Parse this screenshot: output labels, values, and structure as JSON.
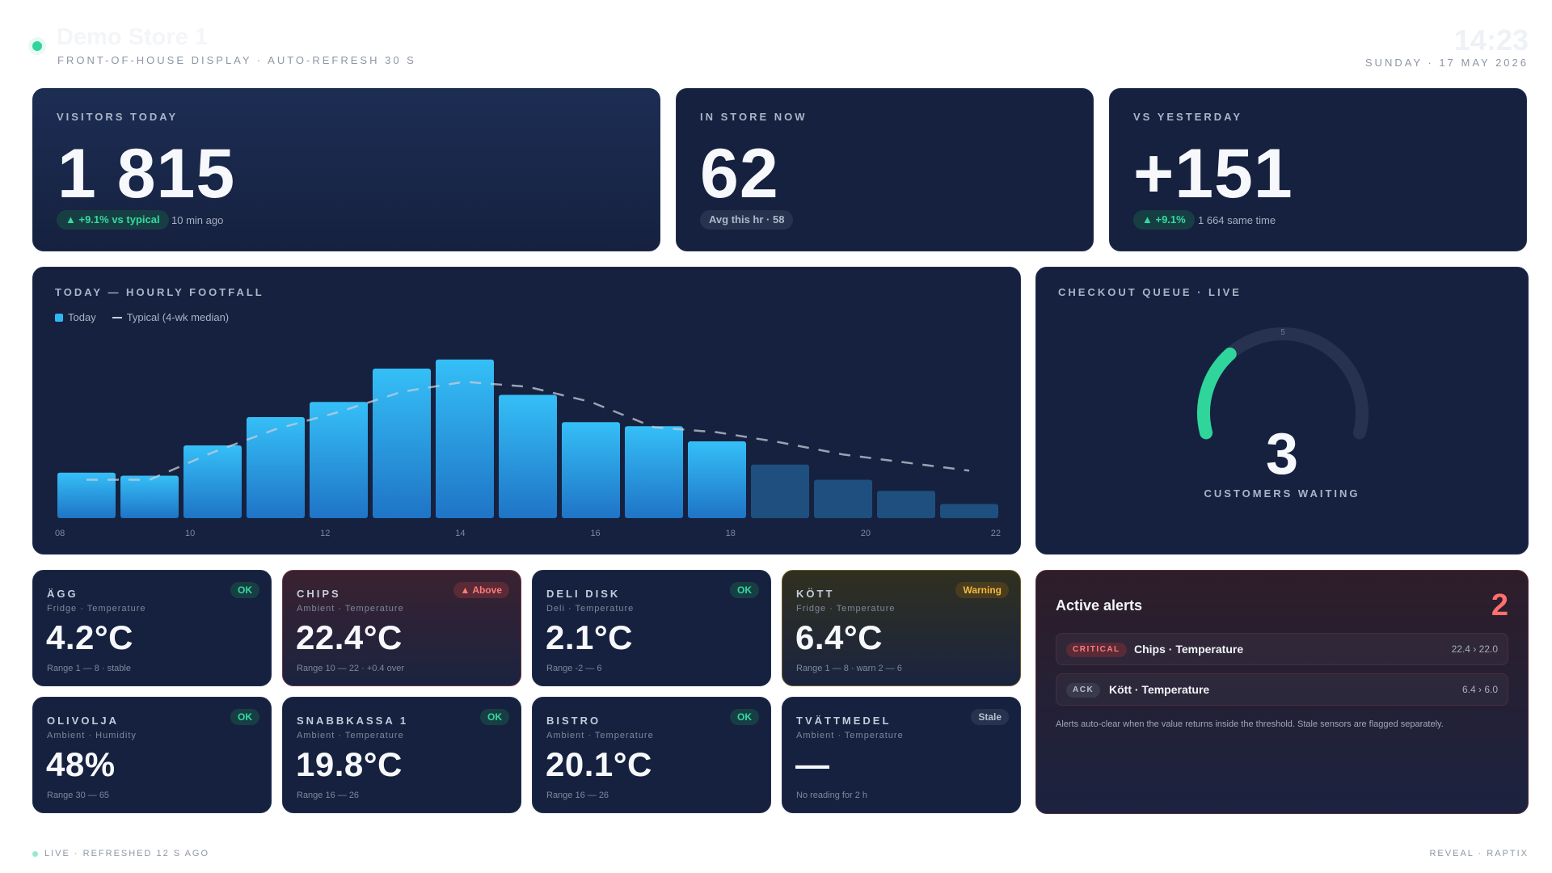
{
  "header": {
    "title": "Demo Store 1",
    "subtitle": "Front-of-house display · Auto-refresh 30 s",
    "time": "14:23",
    "date": "Sunday · 17 May 2026"
  },
  "kpis": {
    "visitors": {
      "label": "Visitors today",
      "value": "1 815",
      "pill": "▲ +9.1% vs typical",
      "note": "10 min ago"
    },
    "in_store": {
      "label": "In store now",
      "value": "62",
      "pill": "Avg this hr · 58"
    },
    "vs_yesterday": {
      "label": "vs yesterday",
      "value": "+151",
      "pill": "▲ +9.1%",
      "note": "1 664 same time"
    }
  },
  "footfall": {
    "title": "Today — hourly footfall",
    "legend_today": "Today",
    "legend_typical": "Typical (4-wk median)"
  },
  "chart_data": {
    "type": "bar",
    "categories": [
      "08",
      "09",
      "10",
      "11",
      "12",
      "13",
      "14",
      "15",
      "16",
      "17",
      "18",
      "19",
      "20",
      "21",
      "22"
    ],
    "x_tick_labels": [
      "08",
      "10",
      "12",
      "14",
      "16",
      "18",
      "20",
      "22"
    ],
    "series": [
      {
        "name": "Today",
        "values": [
          45,
          42,
          72,
          100,
          115,
          148,
          157,
          122,
          95,
          91,
          76,
          53,
          38,
          27,
          14
        ]
      },
      {
        "name": "Typical (4-wk median)",
        "values": [
          38,
          38,
          65,
          88,
          105,
          125,
          135,
          130,
          115,
          90,
          85,
          75,
          63,
          55,
          47
        ]
      }
    ],
    "ylim": [
      0,
      200
    ],
    "grid": false,
    "colors": {
      "today": "#30b7f3",
      "today_dim": "#1f4f7f",
      "typical": "#c7ced9"
    }
  },
  "queue": {
    "title": "Checkout queue · live",
    "value": "3",
    "label": "Customers waiting",
    "gauge_max": 10,
    "gauge_mid_label": "5",
    "gauge_fraction": 0.3,
    "color": "#2fd59a"
  },
  "sensors": [
    {
      "name": "Ägg",
      "meta": "Fridge · Temperature",
      "value": "4.2°C",
      "range": "Range 1 — 8 · stable",
      "badge": "OK",
      "state": "ok"
    },
    {
      "name": "Chips",
      "meta": "Ambient · Temperature",
      "value": "22.4°C",
      "range": "Range 10 — 22 · +0.4 over",
      "badge": "▲ Above",
      "state": "above"
    },
    {
      "name": "Deli Disk",
      "meta": "Deli · Temperature",
      "value": "2.1°C",
      "range": "Range -2 — 6",
      "badge": "OK",
      "state": "ok"
    },
    {
      "name": "Kött",
      "meta": "Fridge · Temperature",
      "value": "6.4°C",
      "range": "Range 1 — 8 · warn 2 — 6",
      "badge": "Warning",
      "state": "warn"
    },
    {
      "name": "Olivolja",
      "meta": "Ambient · Humidity",
      "value": "48%",
      "range": "Range 30 — 65",
      "badge": "OK",
      "state": "ok"
    },
    {
      "name": "Snabbkassa 1",
      "meta": "Ambient · Temperature",
      "value": "19.8°C",
      "range": "Range 16 — 26",
      "badge": "OK",
      "state": "ok"
    },
    {
      "name": "Bistro",
      "meta": "Ambient · Temperature",
      "value": "20.1°C",
      "range": "Range 16 — 26",
      "badge": "OK",
      "state": "ok"
    },
    {
      "name": "Tvättmedel",
      "meta": "Ambient · Temperature",
      "value": "—",
      "range": "No reading for 2 h",
      "badge": "Stale",
      "state": "stale"
    }
  ],
  "alerts": {
    "title": "Active alerts",
    "count": "2",
    "items": [
      {
        "tag": "Critical",
        "name": "Chips · Temperature",
        "value": "22.4 › 22.0"
      },
      {
        "tag": "Ack",
        "name": "Kött · Temperature",
        "value": "6.4 › 6.0"
      }
    ],
    "note": "Alerts auto-clear when the value returns inside the threshold. Stale sensors are flagged separately."
  },
  "footer": {
    "left": "Live · Refreshed 12 s ago",
    "right": "Reveal · Raptix"
  }
}
